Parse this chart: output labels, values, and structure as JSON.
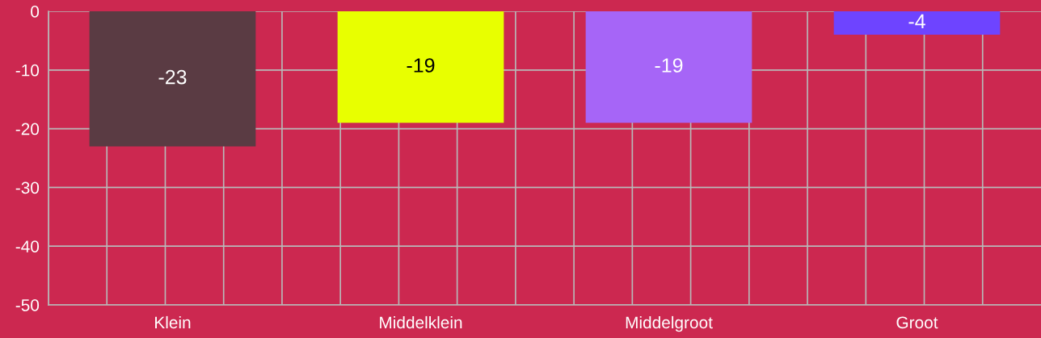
{
  "chart_data": {
    "type": "bar",
    "categories": [
      "Klein",
      "Middelklein",
      "Middelgroot",
      "Groot"
    ],
    "values": [
      -23,
      -19,
      -19,
      -4
    ],
    "colors": [
      "#5a3b43",
      "#e8ff00",
      "#a665f7",
      "#6e44ff"
    ],
    "ylim": [
      -50,
      0
    ],
    "yticks": [
      -50,
      -40,
      -30,
      -20,
      -10,
      0
    ],
    "grid": true,
    "data_labels": true
  }
}
